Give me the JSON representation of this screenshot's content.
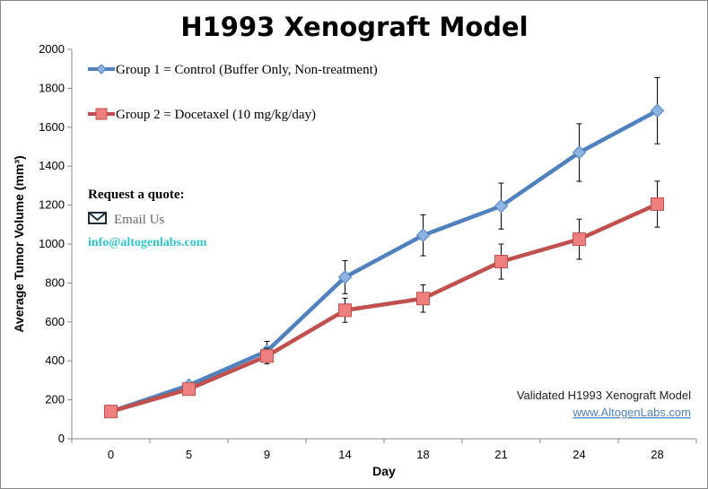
{
  "chart_data": {
    "type": "line",
    "title": "H1993 Xenograft Model",
    "xlabel": "Day",
    "ylabel": "Average Tumor Volume (mm³)",
    "categories": [
      "0",
      "5",
      "9",
      "14",
      "18",
      "21",
      "24",
      "28"
    ],
    "ylim": [
      0,
      2000
    ],
    "yticks": [
      "0",
      "200",
      "400",
      "600",
      "800",
      "1000",
      "1200",
      "1400",
      "1600",
      "1800",
      "2000"
    ],
    "grid": false,
    "legend_position": "top-left",
    "series": [
      {
        "name": "Group 1 = Control (Buffer Only, Non-treatment)",
        "color": "#4F81BD",
        "marker": "diamond",
        "values": [
          140,
          275,
          450,
          830,
          1045,
          1195,
          1470,
          1685
        ],
        "yerr": [
          10,
          20,
          50,
          85,
          105,
          118,
          148,
          170
        ]
      },
      {
        "name": "Group 2 = Docetaxel (10 mg/kg/day)",
        "color": "#C0504D",
        "marker": "square",
        "values": [
          140,
          255,
          425,
          660,
          720,
          910,
          1025,
          1205
        ],
        "yerr": [
          10,
          15,
          40,
          62,
          70,
          90,
          103,
          118
        ]
      }
    ]
  },
  "quote": {
    "heading": "Request a quote:",
    "email_label": "Email Us",
    "email": "info@altogenlabs.com"
  },
  "footer": {
    "caption": "Validated H1993 Xenograft Model",
    "link": "www.AltogenLabs.com"
  }
}
